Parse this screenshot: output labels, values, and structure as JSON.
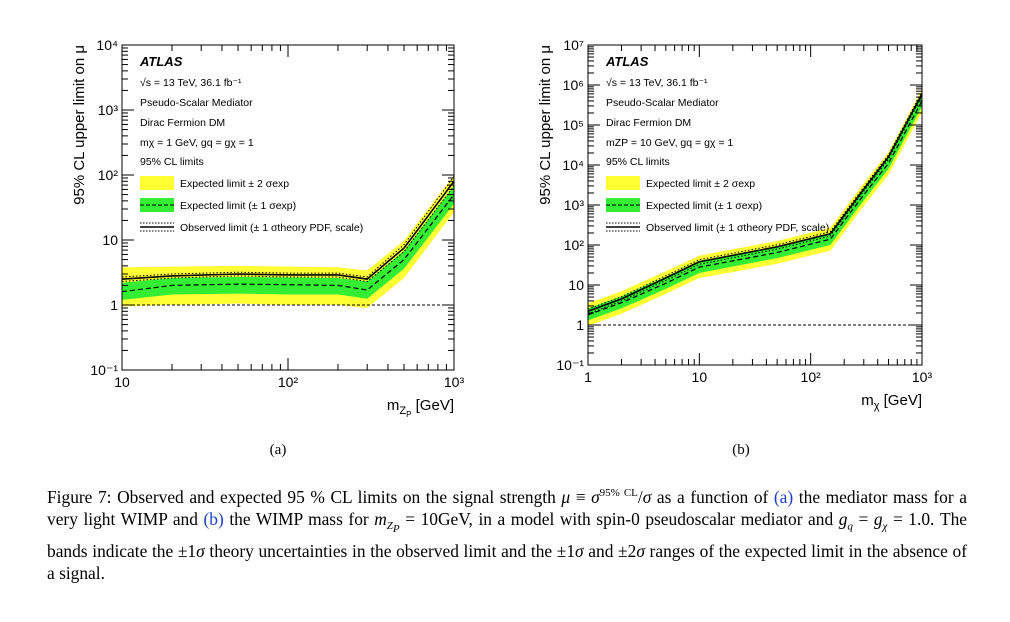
{
  "panels": [
    {
      "id": "a",
      "sublabel": "(a)",
      "ylabel": "95% CL upper limit on μ",
      "xlabel_main": "m",
      "xlabel_sub": "Z",
      "xlabel_subsub": "P",
      "xlabel_unit": "[GeV]",
      "legend_lines": [
        "ATLAS",
        "√s = 13 TeV, 36.1 fb⁻¹",
        "Pseudo-Scalar Mediator",
        "Dirac Fermion DM",
        "mχ = 1 GeV, gq = gχ = 1",
        "95% CL limits"
      ],
      "legend_entries": [
        "Expected limit ± 2 σexp",
        "Expected limit (± 1 σexp)",
        "Observed limit (± 1 σtheory PDF, scale)"
      ]
    },
    {
      "id": "b",
      "sublabel": "(b)",
      "ylabel": "95% CL upper limit on μ",
      "xlabel_main": "m",
      "xlabel_sub": "χ",
      "xlabel_unit": "[GeV]",
      "legend_lines": [
        "ATLAS",
        "√s = 13 TeV, 36.1 fb⁻¹",
        "Pseudo-Scalar Mediator",
        "Dirac Fermion DM",
        "mZP = 10 GeV, gq = gχ = 1",
        "95% CL limits"
      ],
      "legend_entries": [
        "Expected limit ± 2 σexp",
        "Expected limit (± 1 σexp)",
        "Observed limit (± 1 σtheory PDF, scale)"
      ]
    }
  ],
  "colors": {
    "band2": "#ffff33",
    "band1": "#33ee33",
    "observed": "#000000",
    "expected": "#000000"
  },
  "chart_data": [
    {
      "type": "line",
      "log_x": true,
      "log_y": true,
      "xlim": [
        10,
        1000
      ],
      "ylim": [
        0.1,
        10000
      ],
      "x_ticks": [
        "10",
        "10²",
        "10³"
      ],
      "y_ticks": [
        "10⁻¹",
        "1",
        "10",
        "10²",
        "10³",
        "10⁴"
      ],
      "x": [
        10,
        20,
        50,
        100,
        200,
        300,
        500,
        1000
      ],
      "observed": [
        2.5,
        2.8,
        3.0,
        2.9,
        2.9,
        2.5,
        7.5,
        80
      ],
      "observed_up": [
        2.7,
        3.0,
        3.2,
        3.1,
        3.1,
        2.7,
        8.5,
        95
      ],
      "observed_down": [
        2.3,
        2.6,
        2.8,
        2.7,
        2.7,
        2.3,
        6.6,
        68
      ],
      "expected": [
        1.6,
        2.0,
        2.1,
        2.05,
        2.0,
        1.7,
        5.0,
        50
      ],
      "band1_up": [
        2.2,
        2.6,
        2.7,
        2.65,
        2.6,
        2.3,
        6.8,
        68
      ],
      "band1_down": [
        1.2,
        1.45,
        1.5,
        1.45,
        1.45,
        1.25,
        3.6,
        36
      ],
      "band2_up": [
        3.8,
        3.9,
        4.0,
        3.9,
        3.8,
        3.4,
        9.8,
        100
      ],
      "band2_down": [
        0.95,
        1.0,
        1.05,
        1.0,
        1.0,
        0.9,
        2.6,
        27
      ],
      "reference_line": 1
    },
    {
      "type": "line",
      "log_x": true,
      "log_y": true,
      "xlim": [
        1,
        1000
      ],
      "ylim": [
        0.1,
        10000000
      ],
      "x_ticks": [
        "1",
        "10",
        "10²",
        "10³"
      ],
      "y_ticks": [
        "10⁻¹",
        "1",
        "10",
        "10²",
        "10³",
        "10⁴",
        "10⁵",
        "10⁶",
        "10⁷"
      ],
      "x": [
        1,
        2,
        5,
        10,
        20,
        50,
        150,
        300,
        500,
        1000
      ],
      "observed": [
        2.2,
        4.5,
        15,
        38,
        55,
        90,
        190,
        2500,
        16000,
        600000
      ],
      "observed_up": [
        2.5,
        5.1,
        17,
        43,
        62,
        102,
        215,
        2800,
        18000,
        680000
      ],
      "observed_down": [
        1.9,
        4.0,
        13,
        33,
        48,
        79,
        168,
        2200,
        14000,
        530000
      ],
      "expected": [
        1.8,
        3.6,
        11,
        28,
        40,
        65,
        140,
        1800,
        11000,
        400000
      ],
      "band1_up": [
        2.6,
        5.2,
        16,
        40,
        58,
        93,
        200,
        2600,
        16000,
        580000
      ],
      "band1_down": [
        1.3,
        2.6,
        8,
        20,
        29,
        47,
        100,
        1300,
        8000,
        290000
      ],
      "band2_up": [
        3.5,
        7.0,
        22,
        54,
        78,
        126,
        270,
        3500,
        21000,
        780000
      ],
      "band2_down": [
        0.95,
        1.9,
        6,
        15,
        21,
        34,
        72,
        950,
        5700,
        210000
      ],
      "reference_line": 1
    }
  ],
  "caption": {
    "prefix": "Figure 7: Observed and expected 95 % CL limits on the signal strength ",
    "mu": "μ",
    "equiv": " ≡ ",
    "sigma": "σ",
    "sup": "95% CL",
    "slash": "/",
    "sigma2": "σ",
    "mid1": " as a function of ",
    "ref_a": "(a)",
    "mid2": " the mediator mass for a very light WIMP and ",
    "ref_b": "(b)",
    "mid3": " the WIMP mass for ",
    "m": "m",
    "mz_sub": "Z",
    "mz_subsub": "P",
    "mid4": " = 10GeV, in a model with spin-0 pseudoscalar mediator and ",
    "g": "g",
    "gq_sub": "q",
    "eq": " = ",
    "g2": "g",
    "gx_sub": "χ",
    "mid5": " = 1.0. The bands indicate the ±1",
    "s1": "σ",
    "mid6": " theory uncertainties in the observed limit and the ±1",
    "s2": "σ",
    "mid7": " and ±2",
    "s3": "σ",
    "suffix": " ranges of the expected limit in the absence of a signal."
  }
}
